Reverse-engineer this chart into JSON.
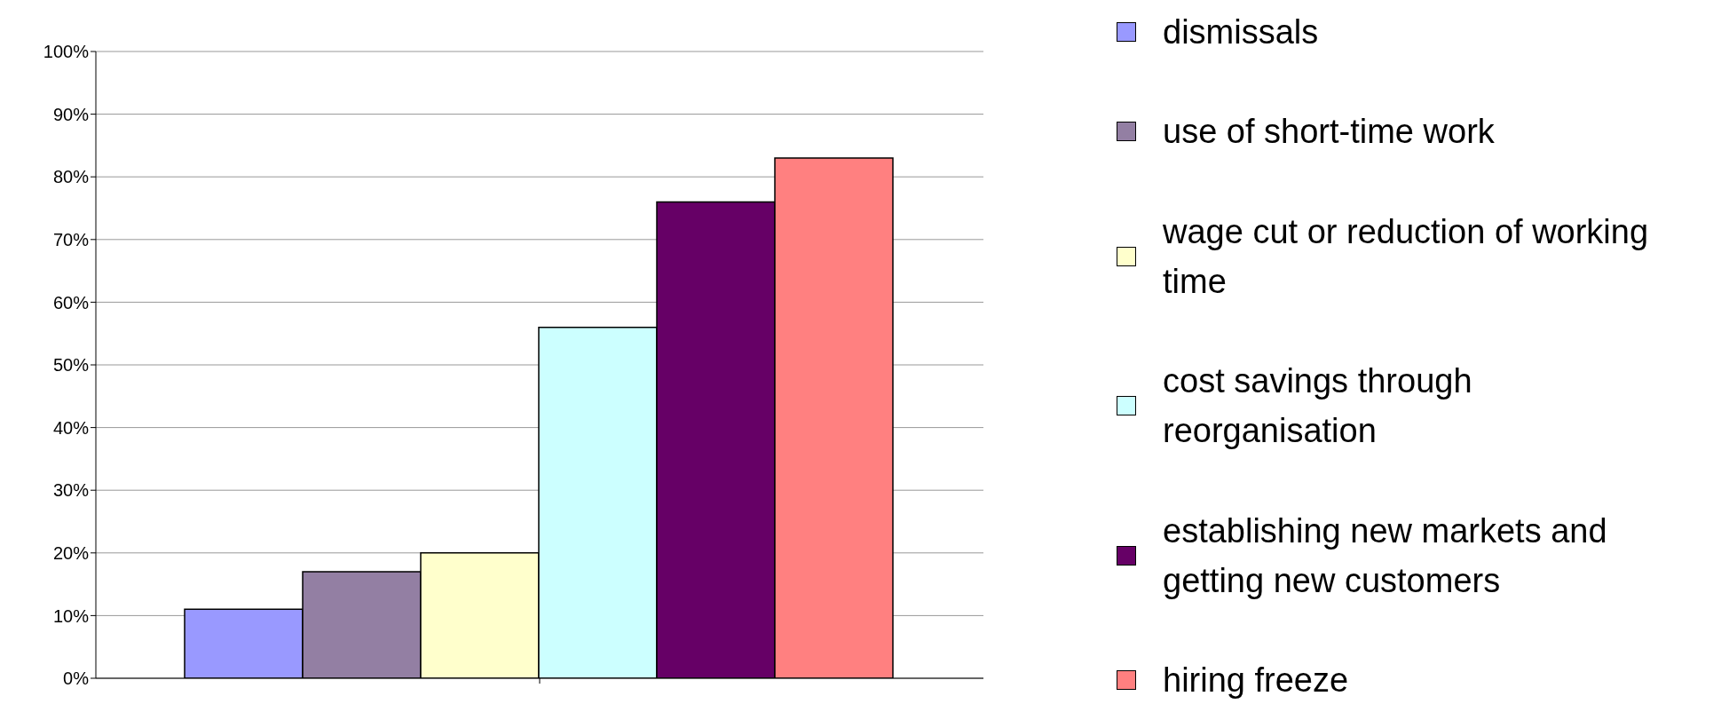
{
  "chart_data": {
    "type": "bar",
    "categories": [
      null
    ],
    "series": [
      {
        "name": "dismissals",
        "color": "#9999ff",
        "values": [
          11
        ]
      },
      {
        "name": "use of short-time work",
        "color": "#937fa3",
        "values": [
          17
        ]
      },
      {
        "name": "wage cut or reduction of working time",
        "color": "#ffffcc",
        "values": [
          20
        ]
      },
      {
        "name": "cost savings through reorganisation",
        "color": "#ccffff",
        "values": [
          56
        ]
      },
      {
        "name": "establishing new markets and getting new customers",
        "color": "#660066",
        "values": [
          76
        ]
      },
      {
        "name": "hiring freeze",
        "color": "#ff8080",
        "values": [
          83
        ]
      }
    ],
    "ylim": [
      0,
      100
    ],
    "yticks": [
      {
        "value": 0,
        "label": "0%"
      },
      {
        "value": 10,
        "label": "10%"
      },
      {
        "value": 20,
        "label": "20%"
      },
      {
        "value": 30,
        "label": "30%"
      },
      {
        "value": 40,
        "label": "40%"
      },
      {
        "value": 50,
        "label": "50%"
      },
      {
        "value": 60,
        "label": "60%"
      },
      {
        "value": 70,
        "label": "70%"
      },
      {
        "value": 80,
        "label": "80%"
      },
      {
        "value": 90,
        "label": "90%"
      },
      {
        "value": 100,
        "label": "100%"
      }
    ],
    "grid": "y",
    "legend": "right"
  }
}
